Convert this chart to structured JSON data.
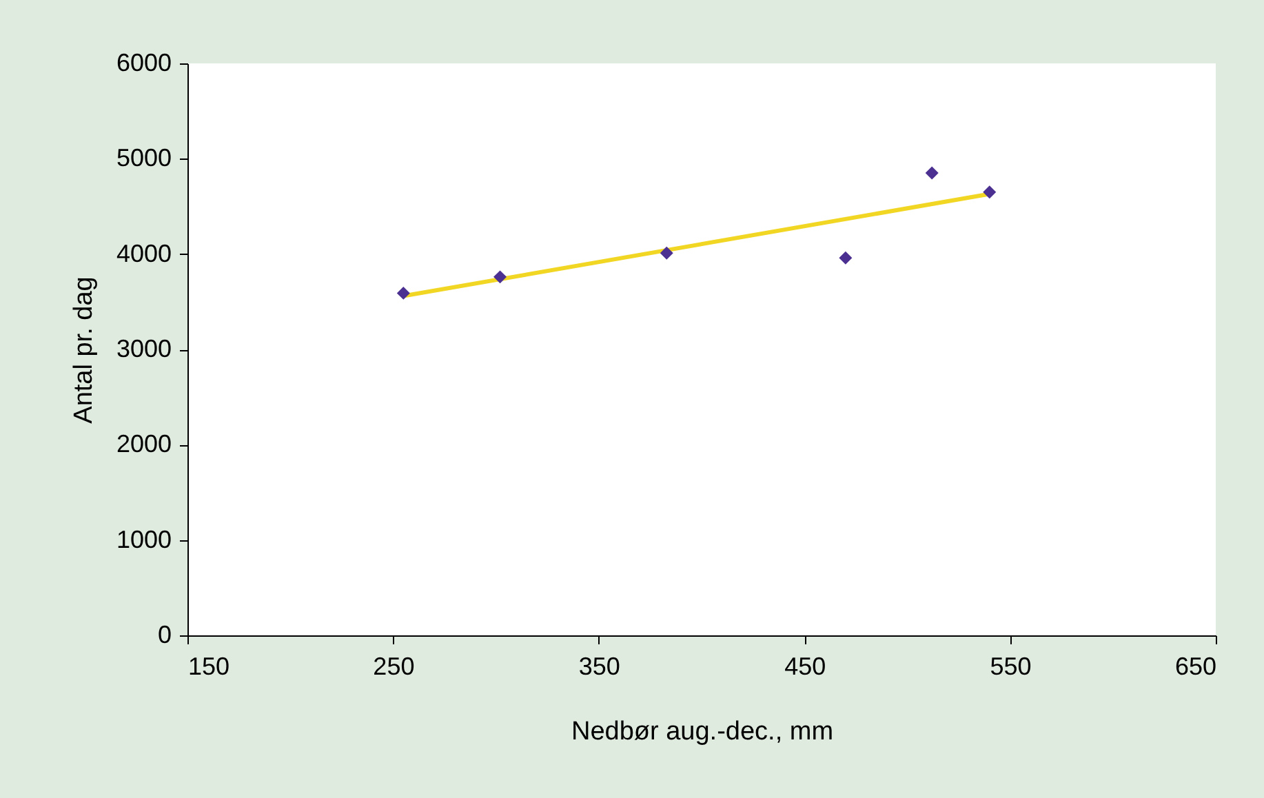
{
  "chart_data": {
    "type": "scatter",
    "xlabel": "Nedbør aug.-dec., mm",
    "ylabel": "Antal pr. dag",
    "xlim": [
      150,
      650
    ],
    "xticks": [
      150,
      250,
      350,
      450,
      550,
      650
    ],
    "ylim": [
      0,
      6000
    ],
    "yticks": [
      0,
      1000,
      2000,
      3000,
      4000,
      5000,
      6000
    ],
    "grid": false,
    "marker": "diamond",
    "series": [
      {
        "color": "#4b2f91",
        "x": [
          255,
          302,
          383,
          470,
          512,
          540
        ],
        "values": [
          3590,
          3760,
          4010,
          3960,
          4850,
          4650
        ]
      },
      {
        "type": "line",
        "color": "#f2d624",
        "marker": "none",
        "x": [
          255,
          540
        ],
        "values": [
          3560,
          4630
        ]
      }
    ]
  }
}
